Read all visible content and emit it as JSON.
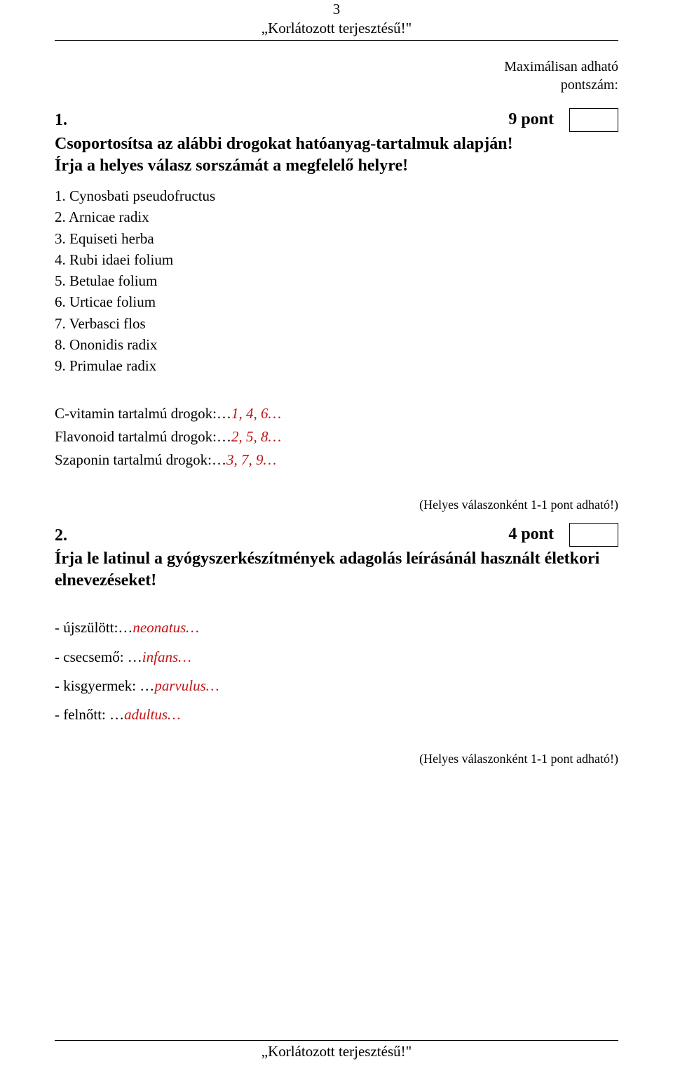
{
  "page_number": "3",
  "header_title": "„Korlátozott terjesztésű!\"",
  "max_score_label_l1": "Maximálisan adható",
  "max_score_label_l2": "pontszám:",
  "q1": {
    "number": "1.",
    "points": "9 pont",
    "title_l1": "Csoportosítsa az alábbi drogokat hatóanyag-tartalmuk alapján!",
    "title_l2": "Írja a helyes válasz sorszámát a megfelelő helyre!",
    "items": {
      "i1": "1. Cynosbati pseudofructus",
      "i2": "2. Arnicae radix",
      "i3": "3. Equiseti herba",
      "i4": "4. Rubi idaei folium",
      "i5": "5. Betulae folium",
      "i6": "6. Urticae folium",
      "i7": "7. Verbasci flos",
      "i8": "8. Ononidis radix",
      "i9": "9. Primulae radix"
    },
    "answers": {
      "a1_label": "C-vitamin tartalmú drogok:…",
      "a1_val": "1, 4, 6…",
      "a2_label": "Flavonoid tartalmú drogok:…",
      "a2_val": "2, 5, 8…",
      "a3_label": "Szaponin tartalmú drogok:…",
      "a3_val": "3, 7, 9…"
    }
  },
  "scoring_note": "(Helyes válaszonként 1-1 pont adható!)",
  "q2": {
    "number": "2.",
    "points": "4 pont",
    "title_l1": "Írja le latinul a gyógyszerkészítmények adagolás leírásánál használt életkori",
    "title_l2": "elnevezéseket!",
    "ages": {
      "a1_label": "- újszülött:…",
      "a1_val": "neonatus…",
      "a2_label": "- csecsemő: …",
      "a2_val": "infans…",
      "a3_label": "- kisgyermek: …",
      "a3_val": "parvulus…",
      "a4_label": "- felnőtt: …",
      "a4_val": "adultus…"
    }
  },
  "footer_title": "„Korlátozott terjesztésű!\"",
  "colors": {
    "text": "#000000",
    "answer": "#c31214",
    "background": "#ffffff"
  }
}
